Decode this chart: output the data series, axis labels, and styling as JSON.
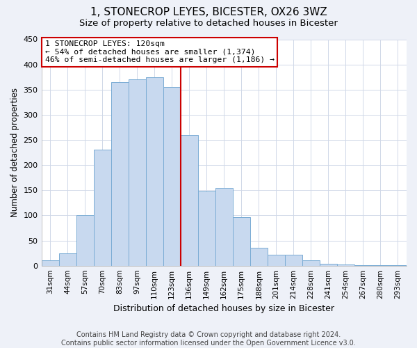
{
  "title": "1, STONECROP LEYES, BICESTER, OX26 3WZ",
  "subtitle": "Size of property relative to detached houses in Bicester",
  "xlabel": "Distribution of detached houses by size in Bicester",
  "ylabel": "Number of detached properties",
  "bar_labels": [
    "31sqm",
    "44sqm",
    "57sqm",
    "70sqm",
    "83sqm",
    "97sqm",
    "110sqm",
    "123sqm",
    "136sqm",
    "149sqm",
    "162sqm",
    "175sqm",
    "188sqm",
    "201sqm",
    "214sqm",
    "228sqm",
    "241sqm",
    "254sqm",
    "267sqm",
    "280sqm",
    "293sqm"
  ],
  "bar_values": [
    10,
    25,
    100,
    230,
    365,
    370,
    375,
    355,
    260,
    148,
    155,
    96,
    35,
    22,
    22,
    10,
    4,
    3,
    1,
    1,
    1
  ],
  "bar_color": "#c8d9ef",
  "bar_edge_color": "#7aacd4",
  "vline_color": "#cc0000",
  "annotation_line1": "1 STONECROP LEYES: 120sqm",
  "annotation_line2": "← 54% of detached houses are smaller (1,374)",
  "annotation_line3": "46% of semi-detached houses are larger (1,186) →",
  "ylim": [
    0,
    450
  ],
  "yticks": [
    0,
    50,
    100,
    150,
    200,
    250,
    300,
    350,
    400,
    450
  ],
  "footer_line1": "Contains HM Land Registry data © Crown copyright and database right 2024.",
  "footer_line2": "Contains public sector information licensed under the Open Government Licence v3.0.",
  "bg_color": "#eef1f8",
  "plot_bg_color": "#ffffff",
  "grid_color": "#d0d8e8"
}
